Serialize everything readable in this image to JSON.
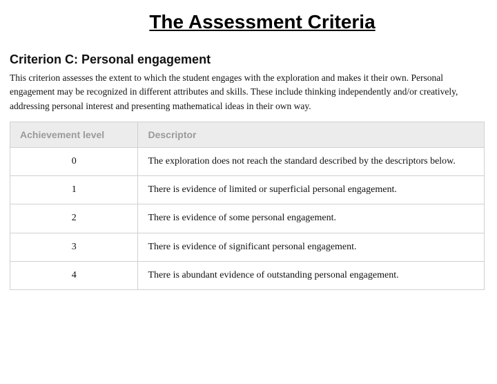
{
  "title": "The Assessment Criteria",
  "criterion": {
    "heading": "Criterion C: Personal engagement",
    "description": "This criterion assesses the extent to which the student engages with the exploration and makes it their own. Personal engagement may be recognized in different attributes and skills. These include thinking independently and/or creatively, addressing personal interest and presenting mathematical ideas in their own way."
  },
  "table": {
    "columns": [
      "Achievement level",
      "Descriptor"
    ],
    "col_widths_pct": [
      27,
      73
    ],
    "rows": [
      {
        "level": "0",
        "descriptor": "The exploration does not reach the standard described by the descriptors below."
      },
      {
        "level": "1",
        "descriptor": "There is evidence of limited or superficial personal engagement."
      },
      {
        "level": "2",
        "descriptor": "There is evidence of some personal engagement."
      },
      {
        "level": "3",
        "descriptor": "There is evidence of significant personal engagement."
      },
      {
        "level": "4",
        "descriptor": "There is abundant evidence of outstanding personal engagement."
      }
    ],
    "header_bg": "#ececec",
    "header_text_color": "#9a9a9a",
    "border_color": "#d0d0d0",
    "body_text_color": "#111111",
    "font_size_pt": 11
  },
  "colors": {
    "background": "#ffffff",
    "title_color": "#000000",
    "text_color": "#111111"
  }
}
